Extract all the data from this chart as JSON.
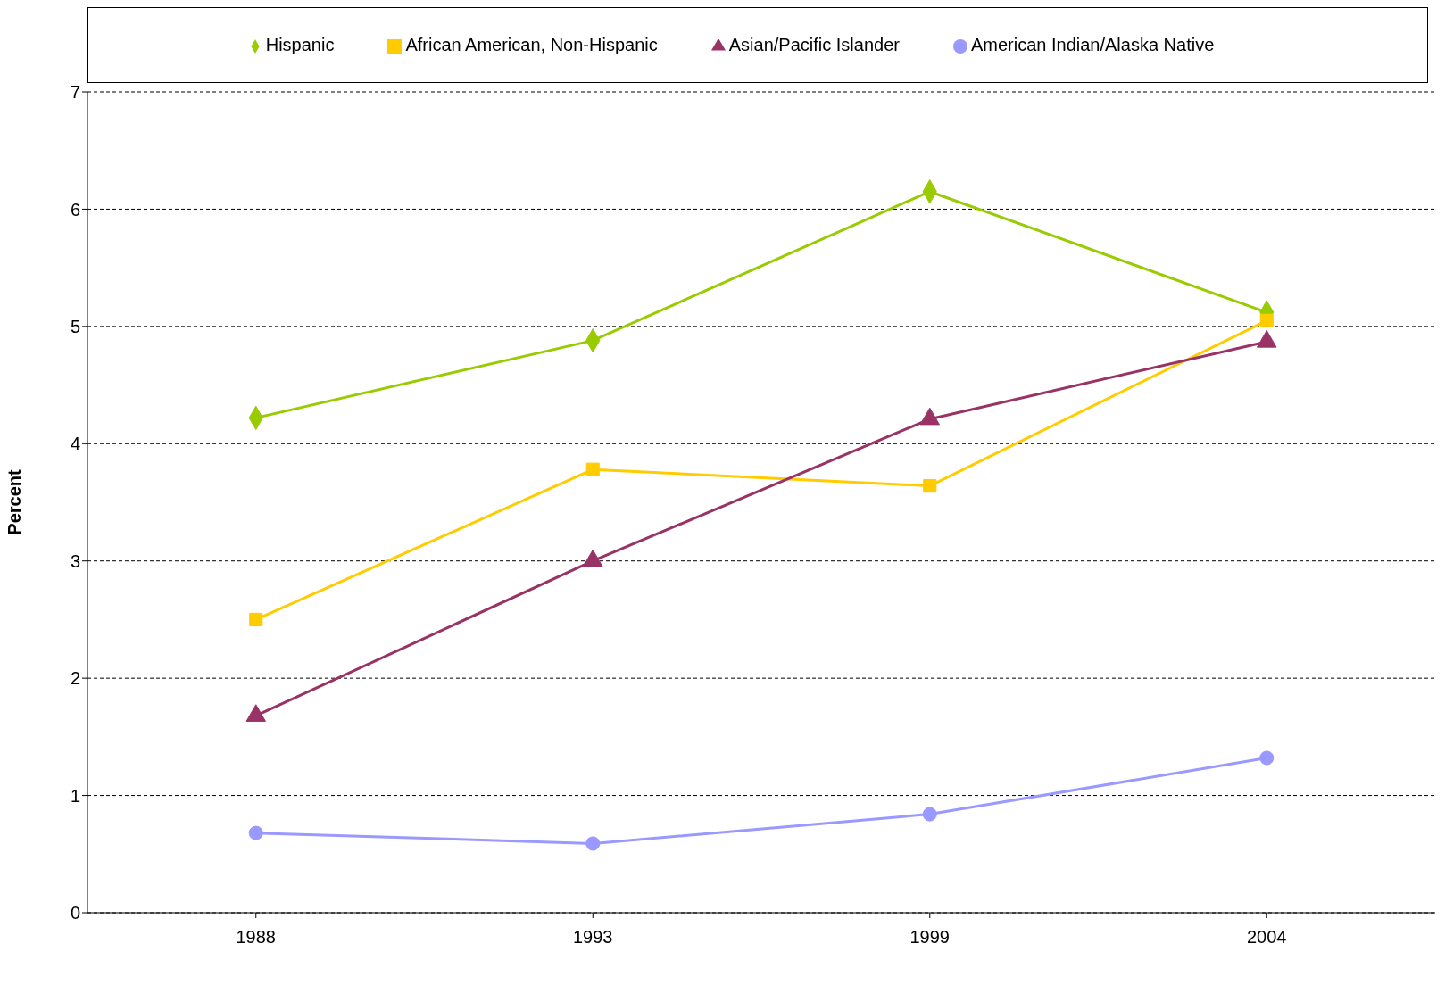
{
  "chart_data": {
    "type": "line",
    "ylabel": "Percent",
    "categories": [
      "1988",
      "1993",
      "1999",
      "2004"
    ],
    "series": [
      {
        "name": "Hispanic",
        "color": "#99cc00",
        "marker": "diamond",
        "values": [
          4.22,
          4.88,
          6.15,
          5.12
        ]
      },
      {
        "name": "African American, Non-Hispanic",
        "color": "#ffcc00",
        "marker": "square",
        "values": [
          2.5,
          3.78,
          3.64,
          5.05
        ]
      },
      {
        "name": "Asian/Pacific Islander",
        "color": "#993366",
        "marker": "triangle",
        "values": [
          1.68,
          3.0,
          4.21,
          4.87
        ]
      },
      {
        "name": "American Indian/Alaska Native",
        "color": "#9999ff",
        "marker": "circle",
        "values": [
          0.68,
          0.59,
          0.84,
          1.32
        ]
      }
    ],
    "ylim": [
      0,
      7
    ],
    "yticks": [
      0,
      1,
      2,
      3,
      4,
      5,
      6,
      7
    ],
    "grid": "y",
    "legend": "top",
    "line_style": "solid"
  }
}
